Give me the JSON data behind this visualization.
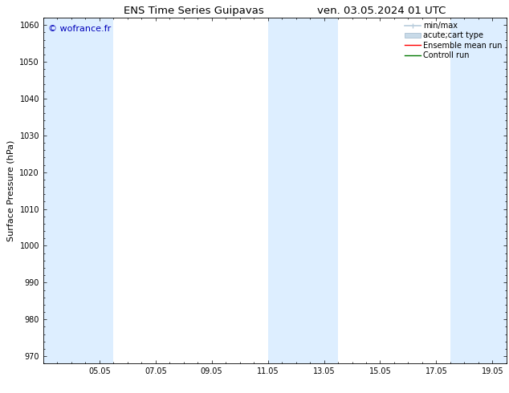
{
  "title_left": "ENS Time Series Guipavas",
  "title_right": "ven. 03.05.2024 01 UTC",
  "ylabel": "Surface Pressure (hPa)",
  "ylim": [
    968,
    1062
  ],
  "yticks": [
    970,
    980,
    990,
    1000,
    1010,
    1020,
    1030,
    1040,
    1050,
    1060
  ],
  "xtick_labels": [
    "05.05",
    "07.05",
    "09.05",
    "11.05",
    "13.05",
    "15.05",
    "17.05",
    "19.05"
  ],
  "xtick_positions": [
    2,
    4,
    6,
    8,
    10,
    12,
    14,
    16
  ],
  "xmin": 0,
  "xmax": 16.5,
  "shaded_bands": [
    {
      "x_start": 0.0,
      "x_end": 2.5
    },
    {
      "x_start": 8.0,
      "x_end": 10.5
    },
    {
      "x_start": 14.5,
      "x_end": 16.5
    }
  ],
  "shade_color": "#ddeeff",
  "background_color": "#ffffff",
  "watermark": "© wofrance.fr",
  "watermark_color": "#0000bb",
  "legend_items": [
    {
      "label": "min/max",
      "color": "#b8ccdc",
      "type": "errorbar"
    },
    {
      "label": "acute;cart type",
      "color": "#c8dae8",
      "type": "bar"
    },
    {
      "label": "Ensemble mean run",
      "color": "#ff0000",
      "type": "line"
    },
    {
      "label": "Controll run",
      "color": "#007700",
      "type": "line"
    }
  ],
  "title_fontsize": 9.5,
  "tick_fontsize": 7,
  "ylabel_fontsize": 8,
  "legend_fontsize": 7,
  "watermark_fontsize": 8
}
